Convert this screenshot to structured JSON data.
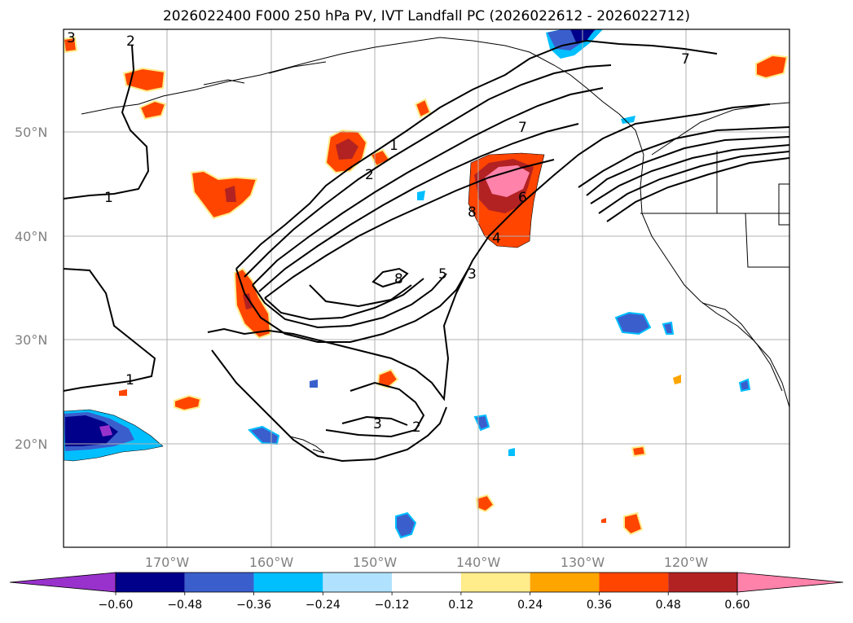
{
  "title": "2026022400 F000 250 hPa PV, IVT Landfall PC (2026022612 - 2026022712)",
  "lat_labels": [
    "50°N",
    "40°N",
    "30°N",
    "20°N"
  ],
  "lon_labels": [
    "170°W",
    "160°W",
    "150°W",
    "140°W",
    "130°W",
    "120°W"
  ],
  "contour_labels": [
    "3",
    "2",
    "1",
    "1",
    "2",
    "8",
    "5",
    "3",
    "6",
    "4",
    "8",
    "7",
    "7",
    "1",
    "3",
    "2"
  ],
  "colorbar": {
    "ticks": [
      "−0.60",
      "−0.48",
      "−0.36",
      "−0.24",
      "−0.12",
      "0.12",
      "0.24",
      "0.36",
      "0.48",
      "0.60"
    ],
    "colors": [
      "#9932cc",
      "#00008b",
      "#3a5fcd",
      "#00bfff",
      "#b0e2ff",
      "#ffffff",
      "#ffec8b",
      "#ffa500",
      "#ff4500",
      "#b22222",
      "#ff82ab"
    ]
  }
}
